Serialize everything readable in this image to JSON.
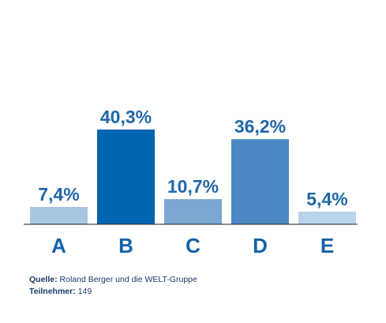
{
  "chart_data": {
    "type": "bar",
    "categories": [
      "A",
      "B",
      "C",
      "D",
      "E"
    ],
    "values": [
      7.4,
      40.3,
      10.7,
      36.2,
      5.4
    ],
    "value_labels": [
      "7,4%",
      "40,3%",
      "10,7%",
      "36,2%",
      "5,4%"
    ],
    "colors": [
      "#a8c6e2",
      "#0065b0",
      "#7ba7d3",
      "#4b88c4",
      "#b9d3ea"
    ],
    "label_color": "#1f67aa",
    "ylim": [
      0,
      45
    ],
    "grid": false,
    "legend": "none"
  },
  "source": {
    "label": "Quelle:",
    "text": "Roland Berger und die WELT-Gruppe"
  },
  "participants": {
    "label": "Teilnehmer:",
    "text": "149"
  }
}
